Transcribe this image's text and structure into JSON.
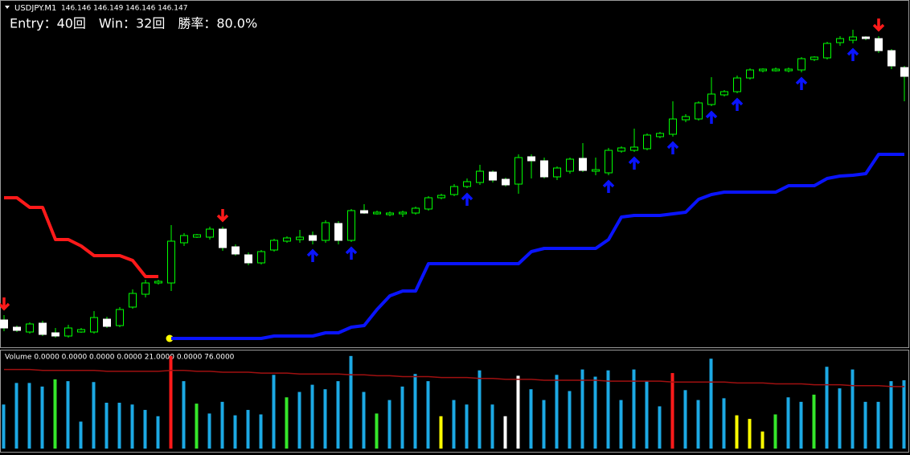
{
  "chart_data": [
    {
      "type": "candlestick",
      "title": "USDJPY.M1",
      "subtitle": "146.146 146.149 146.146 146.147",
      "annotation": "Entry：40回　Win：32回　勝率：80.0%",
      "open": [
        34,
        25,
        19,
        30,
        18,
        14,
        19,
        19,
        35,
        27,
        50,
        66,
        80,
        80,
        130,
        137,
        137,
        147,
        125,
        115,
        105,
        121,
        132,
        134,
        139,
        133,
        154,
        133,
        170,
        166,
        165,
        166,
        167,
        172,
        186,
        190,
        200,
        205,
        218,
        209,
        203,
        237,
        232,
        212,
        219,
        235,
        219,
        217,
        244,
        245,
        247,
        262,
        265,
        283,
        284,
        302,
        314,
        318,
        335,
        344,
        344,
        344,
        345,
        358,
        360,
        379,
        382,
        386,
        384,
        369,
        348
      ],
      "close": [
        24,
        21,
        29,
        16,
        14,
        24,
        22,
        37,
        26,
        47,
        67,
        80,
        82,
        132,
        139,
        140,
        147,
        124,
        116,
        105,
        119,
        133,
        136,
        137,
        133,
        155,
        133,
        170,
        167,
        168,
        167,
        168,
        173,
        186,
        189,
        200,
        206,
        219,
        208,
        202,
        236,
        232,
        212,
        223,
        234,
        220,
        221,
        245,
        248,
        249,
        264,
        266,
        284,
        287,
        304,
        315,
        318,
        335,
        345,
        346,
        346,
        346,
        359,
        361,
        378,
        384,
        386,
        384,
        369,
        350,
        337
      ],
      "high": [
        40,
        27,
        31,
        33,
        24,
        28,
        24,
        45,
        38,
        50,
        72,
        84,
        84,
        152,
        142,
        141,
        150,
        150,
        128,
        118,
        121,
        135,
        138,
        146,
        144,
        158,
        157,
        172,
        178,
        170,
        169,
        170,
        175,
        188,
        191,
        203,
        210,
        227,
        220,
        211,
        240,
        240,
        236,
        225,
        236,
        254,
        236,
        248,
        250,
        272,
        266,
        268,
        306,
        290,
        306,
        336,
        320,
        338,
        347,
        347,
        348,
        348,
        361,
        362,
        380,
        387,
        395,
        387,
        387,
        371,
        350
      ],
      "low": [
        20,
        19,
        17,
        14,
        12,
        12,
        18,
        17,
        24,
        25,
        48,
        62,
        78,
        70,
        126,
        136,
        134,
        120,
        114,
        102,
        103,
        119,
        130,
        130,
        128,
        130,
        128,
        131,
        166,
        165,
        163,
        162,
        165,
        170,
        184,
        188,
        198,
        202,
        205,
        200,
        191,
        210,
        210,
        208,
        216,
        218,
        214,
        214,
        242,
        243,
        245,
        260,
        262,
        280,
        282,
        300,
        312,
        316,
        333,
        342,
        343,
        342,
        342,
        356,
        358,
        375,
        378,
        382,
        366,
        346,
        306
      ],
      "up_color": "#00ff00",
      "down_color": "#ffffff",
      "wick_color": "#00ff00",
      "lines": [
        {
          "color": "#ff1a1a",
          "values": [
            186,
            186,
            174,
            174,
            134,
            134,
            126,
            114,
            114,
            114,
            108,
            88,
            88,
            null,
            null,
            null,
            null,
            null,
            null,
            null,
            null,
            null,
            null,
            null,
            null,
            null,
            null,
            null,
            null,
            null,
            null,
            null,
            null,
            null,
            null,
            null,
            null,
            null,
            null,
            null,
            null,
            null,
            null,
            null,
            null,
            null,
            null,
            null,
            null,
            null,
            null,
            null,
            null,
            null,
            null,
            null,
            null,
            null,
            null,
            null,
            null,
            null,
            null,
            null,
            null,
            null,
            null,
            null,
            null,
            null,
            null
          ]
        },
        {
          "color": "#0a14ff",
          "values": [
            null,
            null,
            null,
            null,
            null,
            null,
            null,
            null,
            null,
            null,
            null,
            null,
            null,
            11,
            11,
            11,
            11,
            11,
            11,
            11,
            11,
            14,
            14,
            14,
            14,
            18,
            18,
            25,
            27,
            47,
            64,
            70,
            70,
            104,
            104,
            104,
            104,
            104,
            104,
            104,
            104,
            119,
            123,
            123,
            123,
            123,
            123,
            134,
            162,
            164,
            164,
            164,
            166,
            168,
            184,
            190,
            193,
            193,
            193,
            193,
            193,
            201,
            201,
            201,
            210,
            213,
            214,
            216,
            240,
            240,
            240
          ]
        }
      ],
      "buy_signals": [
        24,
        27,
        36,
        47,
        49,
        52,
        55,
        57,
        62,
        66
      ],
      "buy_color": "#0a14ff",
      "sell_signals": [
        0,
        17,
        68
      ],
      "sell_color": "#ff1a1a",
      "ylim": [
        0,
        432
      ]
    },
    {
      "type": "bar",
      "title": "Volume 0.0000 0.0000 0.0000 0.0000 21.0000 0.0000 76.0000",
      "values": [
        49,
        73,
        73,
        69,
        77,
        75,
        30,
        74,
        51,
        51,
        49,
        43,
        36,
        103,
        75,
        50,
        39,
        52,
        37,
        43,
        38,
        82,
        57,
        63,
        71,
        66,
        75,
        103,
        63,
        39,
        54,
        69,
        83,
        75,
        36,
        54,
        49,
        87,
        49,
        36,
        81,
        66,
        54,
        82,
        64,
        88,
        80,
        87,
        54,
        88,
        75,
        47,
        84,
        65,
        54,
        100,
        56,
        37,
        33,
        19,
        38,
        57,
        52,
        60,
        91,
        67,
        88,
        52,
        52,
        75,
        76
      ],
      "colors": [
        "#1ca9e4",
        "#1ca9e4",
        "#1ca9e4",
        "#1ca9e4",
        "#35e72a",
        "#1ca9e4",
        "#1ca9e4",
        "#1ca9e4",
        "#1ca9e4",
        "#1ca9e4",
        "#1ca9e4",
        "#1ca9e4",
        "#1ca9e4",
        "#ff1a1a",
        "#1ca9e4",
        "#35e72a",
        "#1ca9e4",
        "#1ca9e4",
        "#1ca9e4",
        "#1ca9e4",
        "#1ca9e4",
        "#1ca9e4",
        "#35e72a",
        "#1ca9e4",
        "#1ca9e4",
        "#1ca9e4",
        "#1ca9e4",
        "#1ca9e4",
        "#1ca9e4",
        "#35e72a",
        "#1ca9e4",
        "#1ca9e4",
        "#1ca9e4",
        "#1ca9e4",
        "#ffff00",
        "#1ca9e4",
        "#1ca9e4",
        "#1ca9e4",
        "#1ca9e4",
        "#ffffff",
        "#ffffff",
        "#1ca9e4",
        "#1ca9e4",
        "#1ca9e4",
        "#1ca9e4",
        "#1ca9e4",
        "#1ca9e4",
        "#1ca9e4",
        "#1ca9e4",
        "#1ca9e4",
        "#1ca9e4",
        "#1ca9e4",
        "#ff1a1a",
        "#1ca9e4",
        "#1ca9e4",
        "#1ca9e4",
        "#1ca9e4",
        "#ffff00",
        "#ffff00",
        "#ffff00",
        "#35e72a",
        "#1ca9e4",
        "#1ca9e4",
        "#35e72a",
        "#1ca9e4",
        "#1ca9e4",
        "#1ca9e4",
        "#1ca9e4",
        "#1ca9e4",
        "#1ca9e4",
        "#1ca9e4"
      ],
      "ma": {
        "color": "#a01010",
        "values": [
          88,
          88,
          88,
          87,
          87,
          87,
          87,
          87,
          86,
          86,
          86,
          86,
          86,
          87,
          87,
          86,
          86,
          85,
          85,
          85,
          84,
          84,
          84,
          83,
          83,
          83,
          83,
          82,
          82,
          81,
          81,
          80,
          80,
          80,
          79,
          79,
          79,
          78,
          78,
          77,
          77,
          77,
          76,
          76,
          76,
          76,
          76,
          75,
          75,
          75,
          75,
          75,
          74,
          74,
          74,
          74,
          74,
          73,
          73,
          73,
          72,
          72,
          72,
          71,
          71,
          71,
          70,
          70,
          70,
          69,
          69
        ]
      },
      "ylim": [
        0,
        110
      ]
    }
  ]
}
